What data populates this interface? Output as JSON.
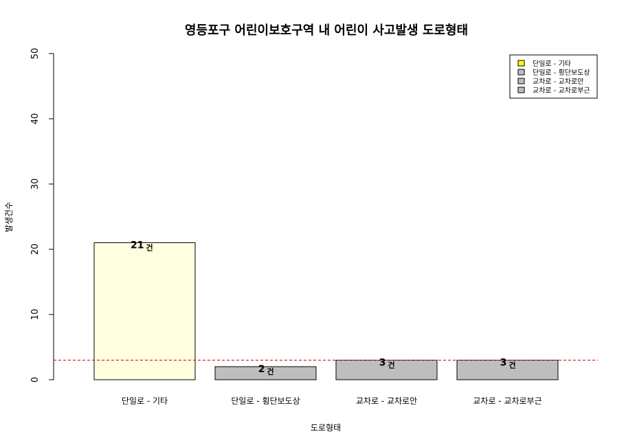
{
  "chart_data": {
    "type": "bar",
    "title": "영등포구 어린이보호구역 내 어린이 사고발생 도로형태",
    "xlabel": "도로형태",
    "ylabel": "발생건수",
    "ylim": [
      0,
      50
    ],
    "yticks": [
      "0",
      "10",
      "20",
      "30",
      "40",
      "50"
    ],
    "categories": [
      "단일로 - 기타",
      "단일로 - 횡단보도상",
      "교차로 - 교차로안",
      "교차로 - 교차로부근"
    ],
    "values": [
      21,
      2,
      3,
      3
    ],
    "value_unit": "건",
    "value_labels": [
      "21",
      "2",
      "3",
      "3"
    ],
    "bar_colors": [
      "#FFFFE0",
      "#BEBEBE",
      "#BEBEBE",
      "#BEBEBE"
    ],
    "reference_line": {
      "value": 3,
      "color": "#CC0000",
      "style": "dashed"
    },
    "legend": {
      "position": "top-right",
      "entries": [
        "단일로 - 기타",
        "단일로 - 횡단보도상",
        "교차로 - 교차로안",
        "교차로 - 교차로부근"
      ],
      "colors": [
        "#FFFF00",
        "#BEBEBE",
        "#BEBEBE",
        "#BEBEBE"
      ]
    },
    "grid": false
  }
}
